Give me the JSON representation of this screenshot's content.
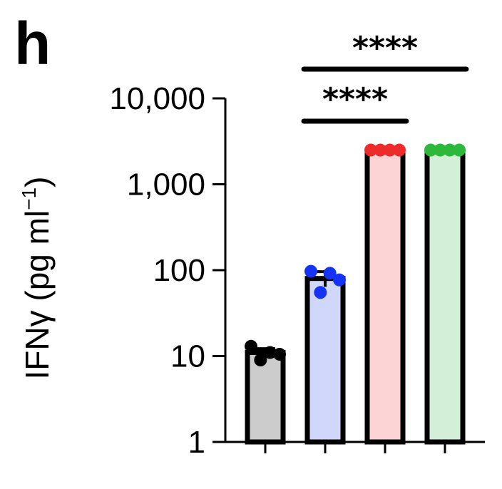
{
  "panel_label": "h",
  "chart_data": {
    "type": "bar",
    "scale": "log",
    "ylabel_main": "IFNγ (pg ml",
    "ylabel_sup": "−1",
    "ylabel_close": ")",
    "ylim": [
      1,
      10000
    ],
    "yticks": [
      {
        "value": 1,
        "label": "1"
      },
      {
        "value": 10,
        "label": "10"
      },
      {
        "value": 100,
        "label": "100"
      },
      {
        "value": 1000,
        "label": "1,000"
      },
      {
        "value": 10000,
        "label": "10,000"
      }
    ],
    "groups": [
      {
        "value": 11,
        "error": 1.2,
        "fill": "#cccccc",
        "dot_color": "#000000",
        "points": [
          13,
          9,
          11,
          10.5
        ]
      },
      {
        "value": 80,
        "error": 16,
        "fill": "#d1d7fb",
        "dot_color": "#1533f5",
        "points": [
          97,
          55,
          92,
          77
        ]
      },
      {
        "value": 2500,
        "error": 0,
        "fill": "#fdd4d6",
        "dot_color": "#ee2b2b",
        "points": [
          2500,
          2500,
          2500,
          2500
        ]
      },
      {
        "value": 2500,
        "error": 0,
        "fill": "#d4efd8",
        "dot_color": "#2cb83a",
        "points": [
          2500,
          2500,
          2500,
          2500
        ]
      }
    ],
    "significance": [
      {
        "from": 1,
        "to": 3,
        "label": "****"
      },
      {
        "from": 1,
        "to": 2,
        "label": "****"
      }
    ]
  }
}
